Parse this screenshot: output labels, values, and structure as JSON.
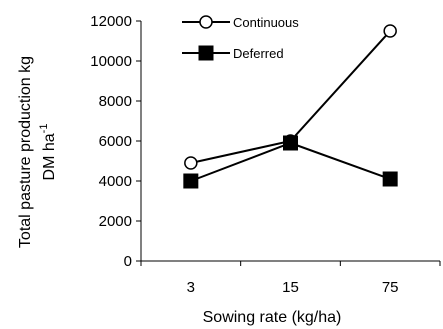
{
  "chart_data": {
    "type": "line",
    "categories": [
      "3",
      "15",
      "75"
    ],
    "series": [
      {
        "name": "Continuous",
        "values": [
          4900,
          6000,
          11500
        ],
        "marker": "open-circle",
        "color": "#000000"
      },
      {
        "name": "Deferred",
        "values": [
          4000,
          5900,
          4100
        ],
        "marker": "filled-square",
        "color": "#000000"
      }
    ],
    "yticks": [
      "0",
      "2000",
      "4000",
      "6000",
      "8000",
      "10000",
      "12000"
    ],
    "ylim": [
      0,
      12000
    ],
    "xlabel": "Sowing rate (kg/ha)",
    "ylabel_line1": "Total pasture production kg",
    "ylabel_line2": "DM ha",
    "ylabel_superscript": "-1",
    "grid": false,
    "legend_position": "top-center"
  }
}
